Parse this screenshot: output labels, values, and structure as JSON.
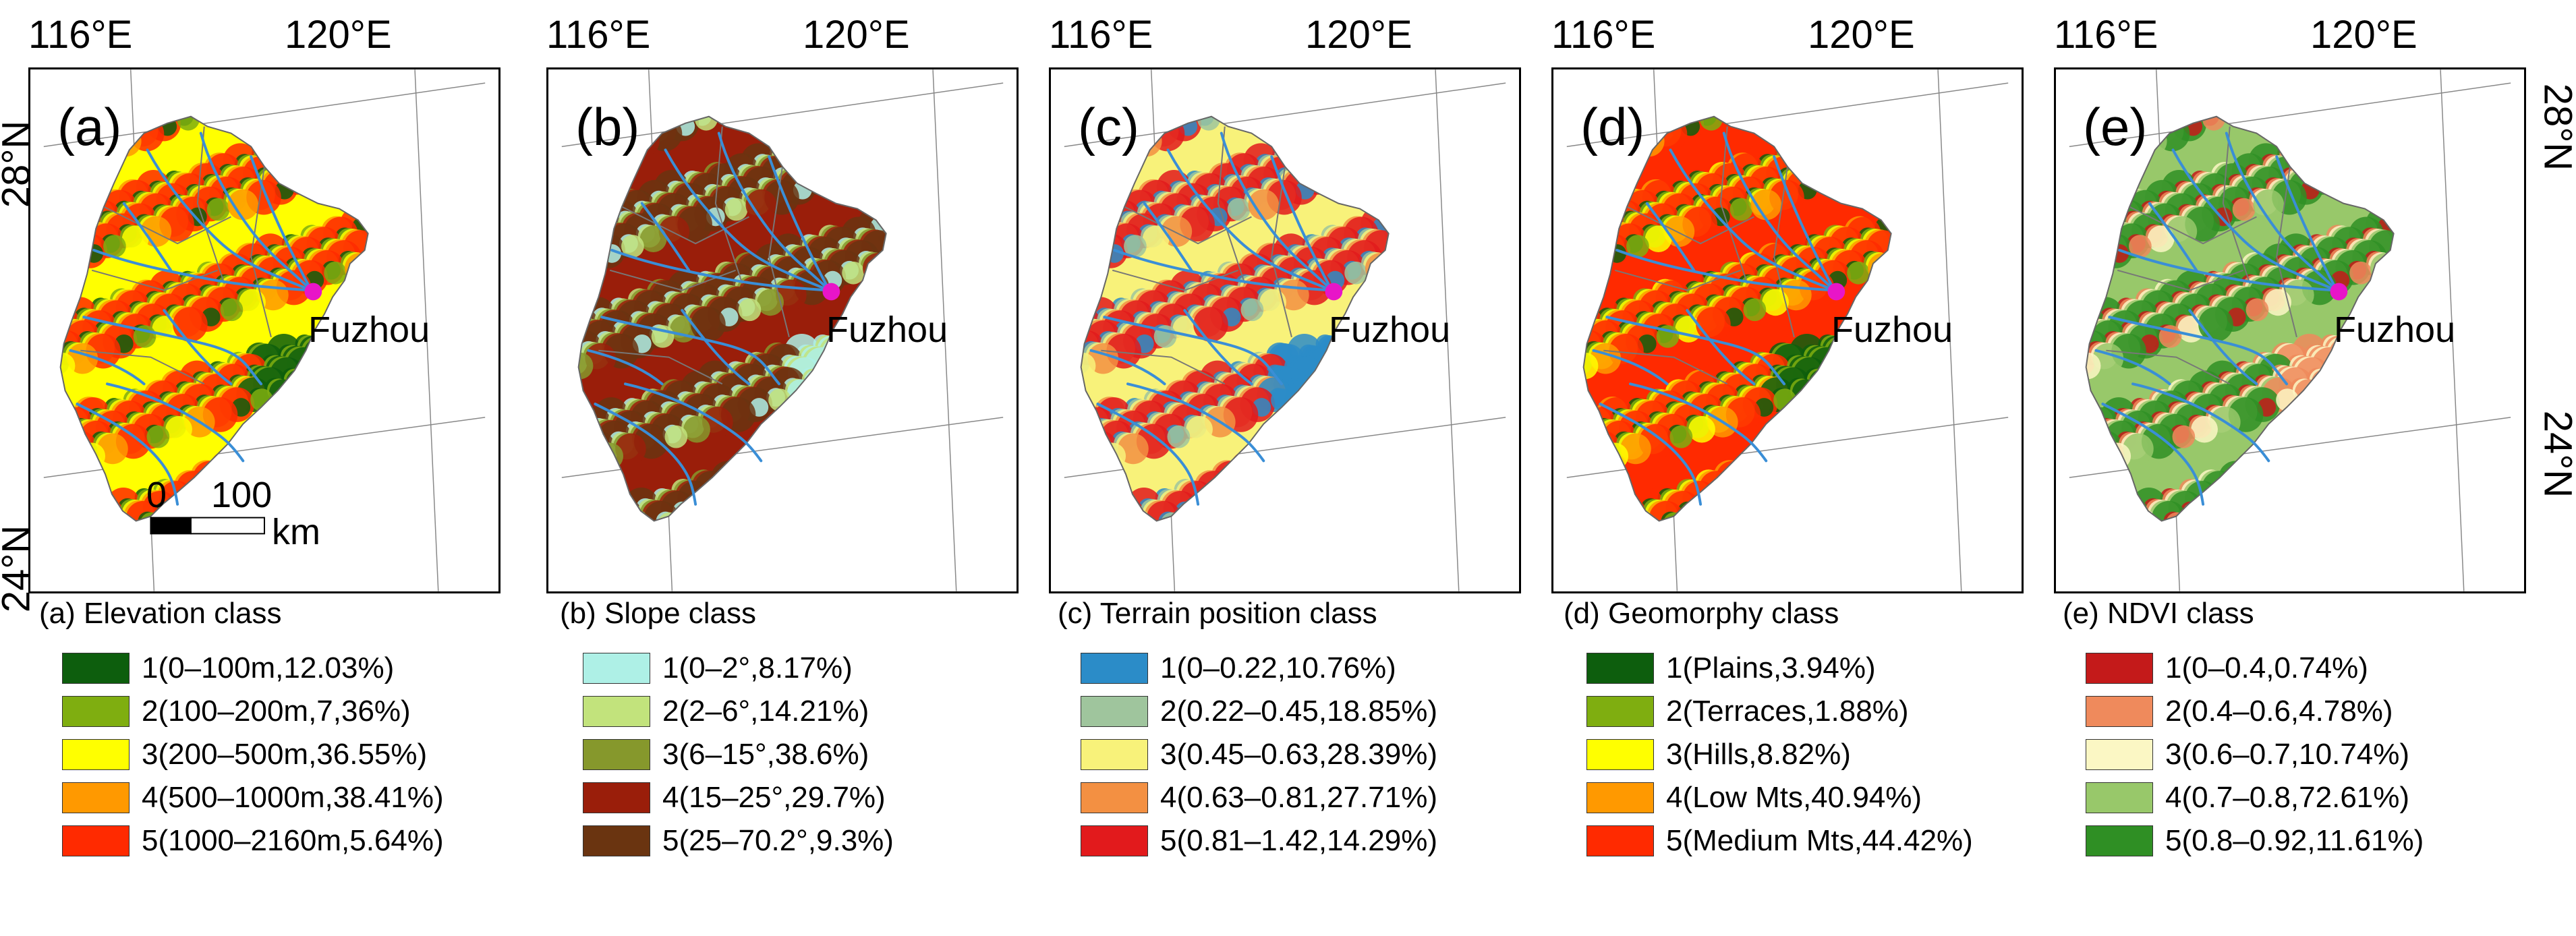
{
  "axes": {
    "lon_labels": [
      "116°E",
      "120°E"
    ],
    "lat_labels": [
      "28°N",
      "24°N"
    ]
  },
  "city": {
    "name": "Fuzhou",
    "marker_color": "#e815c8"
  },
  "scale_bar": {
    "ticks": [
      "0",
      "100"
    ],
    "unit": "km"
  },
  "colors": {
    "river": "#3a8ed6",
    "boundary": "#777777"
  },
  "panels": [
    {
      "label": "(a)",
      "legend_title": "(a) Elevation class",
      "classes": [
        {
          "label": "1(0–100m,12.03%)",
          "color": "#0d5e0d"
        },
        {
          "label": "2(100–200m,7,36%)",
          "color": "#7fae10"
        },
        {
          "label": "3(200–500m,36.55%)",
          "color": "#ffff00"
        },
        {
          "label": "4(500–1000m,38.41%)",
          "color": "#ff9900"
        },
        {
          "label": "5(1000–2160m,5.64%)",
          "color": "#ff2a00"
        }
      ]
    },
    {
      "label": "(b)",
      "legend_title": "(b) Slope class",
      "classes": [
        {
          "label": "1(0–2°,8.17%)",
          "color": "#aef0e6"
        },
        {
          "label": "2(2–6°,14.21%)",
          "color": "#c2e37c"
        },
        {
          "label": "3(6–15°,38.6%)",
          "color": "#86982c"
        },
        {
          "label": "4(15–25°,29.7%)",
          "color": "#9a1e0a"
        },
        {
          "label": "5(25–70.2°,9.3%)",
          "color": "#6a3410"
        }
      ]
    },
    {
      "label": "(c)",
      "legend_title": "(c) Terrain position class",
      "classes": [
        {
          "label": "1(0–0.22,10.76%)",
          "color": "#2b8cc8"
        },
        {
          "label": "2(0.22–0.45,18.85%)",
          "color": "#9fc59d"
        },
        {
          "label": "3(0.45–0.63,28.39%)",
          "color": "#f8f27a"
        },
        {
          "label": "4(0.63–0.81,27.71%)",
          "color": "#f39042"
        },
        {
          "label": "5(0.81–1.42,14.29%)",
          "color": "#e21a1c"
        }
      ]
    },
    {
      "label": "(d)",
      "legend_title": "(d) Geomorphy class",
      "classes": [
        {
          "label": "1(Plains,3.94%)",
          "color": "#0d5e0d"
        },
        {
          "label": "2(Terraces,1.88%)",
          "color": "#7fae10"
        },
        {
          "label": "3(Hills,8.82%)",
          "color": "#ffff00"
        },
        {
          "label": "4(Low Mts,40.94%)",
          "color": "#ff9900"
        },
        {
          "label": "5(Medium Mts,44.42%)",
          "color": "#ff2a00"
        }
      ]
    },
    {
      "label": "(e)",
      "legend_title": "(e) NDVI class",
      "classes": [
        {
          "label": "1(0–0.4,0.74%)",
          "color": "#c41a1a"
        },
        {
          "label": "2(0.4–0.6,4.78%)",
          "color": "#ef8a5c"
        },
        {
          "label": "3(0.6–0.7,10.74%)",
          "color": "#fbf7c4"
        },
        {
          "label": "4(0.7–0.8,72.61%)",
          "color": "#98c86a"
        },
        {
          "label": "5(0.8–0.92,11.61%)",
          "color": "#2f8f24"
        }
      ]
    }
  ]
}
